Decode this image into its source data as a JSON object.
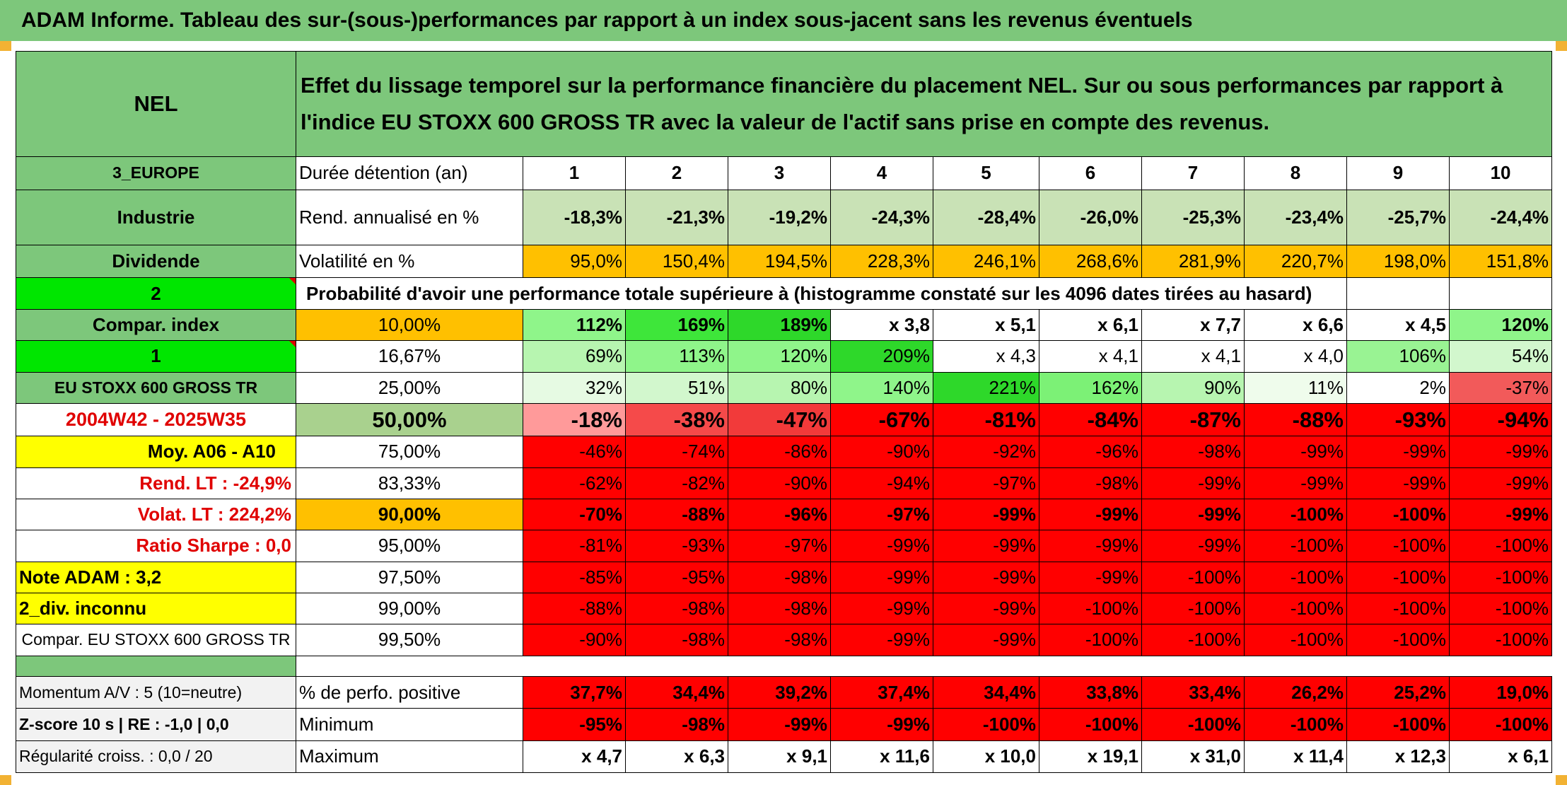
{
  "banner": "ADAM Informe. Tableau des sur-(sous-)performances par rapport à un index sous-jacent sans les revenus éventuels",
  "ticker": "NEL",
  "description": "Effet du lissage temporel sur la performance financière du placement NEL. Sur ou sous performances par rapport à l'indice EU STOXX 600 GROSS TR avec la valeur de l'actif sans prise en compte des revenus.",
  "left": {
    "region": "3_EUROPE",
    "sector": "Industrie",
    "dividend": "Dividende",
    "number2": "2",
    "compar_index": "Compar. index",
    "number1": "1",
    "index_name": "EU STOXX 600 GROSS TR",
    "period": "2004W42 - 2025W35",
    "moy": "Moy. A06 - A10",
    "rend_lt": "Rend. LT :   -24,9%",
    "volat_lt": "Volat. LT :   224,2%",
    "sharpe": "Ratio Sharpe :    0,0",
    "note": "Note ADAM : 3,2",
    "div": "2_div. inconnu",
    "compar": "Compar. EU STOXX 600 GROSS TR",
    "momentum": "Momentum A/V : 5 (10=neutre)",
    "zscore": "Z-score 10 s | RE : -1,0 | 0,0",
    "regularite": "Régularité croiss. : 0,0 / 20"
  },
  "header": {
    "label": "Durée détention (an)",
    "years": [
      "1",
      "2",
      "3",
      "4",
      "5",
      "6",
      "7",
      "8",
      "9",
      "10"
    ]
  },
  "rend": {
    "label": "Rend. annualisé en %",
    "values": [
      "-18,3%",
      "-21,3%",
      "-19,2%",
      "-24,3%",
      "-28,4%",
      "-26,0%",
      "-25,3%",
      "-23,4%",
      "-25,7%",
      "-24,4%"
    ]
  },
  "volat": {
    "label": "Volatilité en %",
    "values": [
      "95,0%",
      "150,4%",
      "194,5%",
      "228,3%",
      "246,1%",
      "268,6%",
      "281,9%",
      "220,7%",
      "198,0%",
      "151,8%"
    ]
  },
  "proba_title": "Probabilité d'avoir une performance totale supérieure à (histogramme constaté sur les 4096 dates tirées au hasard)",
  "quantiles": [
    {
      "p": "10,00%",
      "values": [
        "112%",
        "169%",
        "189%",
        "x 3,8",
        "x 5,1",
        "x 6,1",
        "x 7,7",
        "x 6,6",
        "x 4,5",
        "120%"
      ]
    },
    {
      "p": "16,67%",
      "values": [
        "69%",
        "113%",
        "120%",
        "209%",
        "x 4,3",
        "x 4,1",
        "x 4,1",
        "x 4,0",
        "106%",
        "54%"
      ]
    },
    {
      "p": "25,00%",
      "values": [
        "32%",
        "51%",
        "80%",
        "140%",
        "221%",
        "162%",
        "90%",
        "11%",
        "2%",
        "-37%"
      ]
    },
    {
      "p": "50,00%",
      "values": [
        "-18%",
        "-38%",
        "-47%",
        "-67%",
        "-81%",
        "-84%",
        "-87%",
        "-88%",
        "-93%",
        "-94%"
      ]
    },
    {
      "p": "75,00%",
      "values": [
        "-46%",
        "-74%",
        "-86%",
        "-90%",
        "-92%",
        "-96%",
        "-98%",
        "-99%",
        "-99%",
        "-99%"
      ]
    },
    {
      "p": "83,33%",
      "values": [
        "-62%",
        "-82%",
        "-90%",
        "-94%",
        "-97%",
        "-98%",
        "-99%",
        "-99%",
        "-99%",
        "-99%"
      ]
    },
    {
      "p": "90,00%",
      "values": [
        "-70%",
        "-88%",
        "-96%",
        "-97%",
        "-99%",
        "-99%",
        "-99%",
        "-100%",
        "-100%",
        "-99%"
      ]
    },
    {
      "p": "95,00%",
      "values": [
        "-81%",
        "-93%",
        "-97%",
        "-99%",
        "-99%",
        "-99%",
        "-99%",
        "-100%",
        "-100%",
        "-100%"
      ]
    },
    {
      "p": "97,50%",
      "values": [
        "-85%",
        "-95%",
        "-98%",
        "-99%",
        "-99%",
        "-99%",
        "-100%",
        "-100%",
        "-100%",
        "-100%"
      ]
    },
    {
      "p": "99,00%",
      "values": [
        "-88%",
        "-98%",
        "-98%",
        "-99%",
        "-99%",
        "-100%",
        "-100%",
        "-100%",
        "-100%",
        "-100%"
      ]
    },
    {
      "p": "99,50%",
      "values": [
        "-90%",
        "-98%",
        "-98%",
        "-99%",
        "-99%",
        "-100%",
        "-100%",
        "-100%",
        "-100%",
        "-100%"
      ]
    }
  ],
  "positive": {
    "label": "% de perfo. positive",
    "values": [
      "37,7%",
      "34,4%",
      "39,2%",
      "37,4%",
      "34,4%",
      "33,8%",
      "33,4%",
      "26,2%",
      "25,2%",
      "19,0%"
    ]
  },
  "minimum": {
    "label": "Minimum",
    "values": [
      "-95%",
      "-98%",
      "-99%",
      "-99%",
      "-100%",
      "-100%",
      "-100%",
      "-100%",
      "-100%",
      "-100%"
    ]
  },
  "maximum": {
    "label": "Maximum",
    "values": [
      "x 4,7",
      "x 6,3",
      "x 9,1",
      "x 11,6",
      "x 10,0",
      "x 19,1",
      "x 31,0",
      "x 11,4",
      "x 12,3",
      "x 6,1"
    ]
  },
  "colors": {
    "header_green": "#7dc77b",
    "bright_green": "#00e600",
    "orange": "#ffc000",
    "yellow": "#ffff00",
    "red": "#ff0000",
    "light_red": "#ff9a9a",
    "white": "#ffffff"
  }
}
